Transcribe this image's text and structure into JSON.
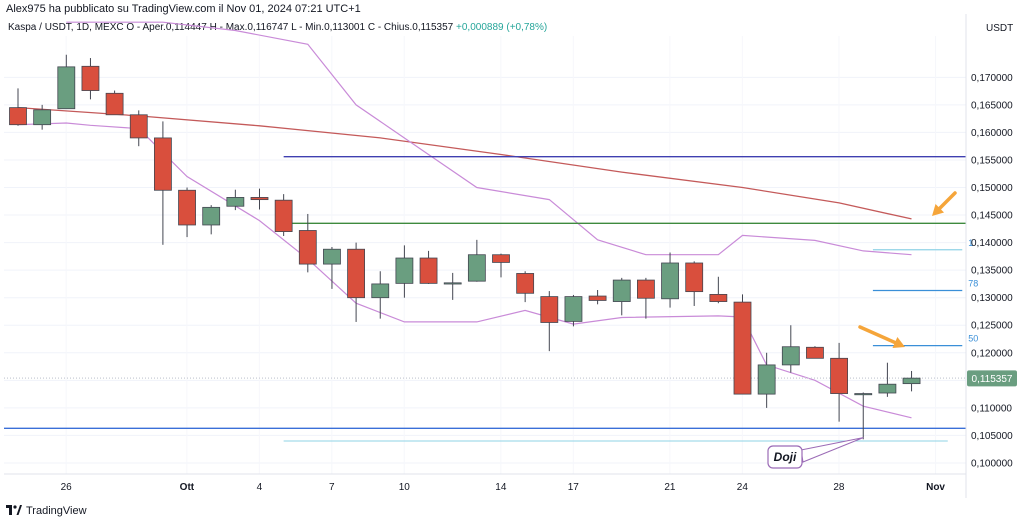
{
  "header": {
    "publish_text": "Alex975 ha pubblicato su TradingView.com il Nov 01, 2024 07:21 UTC+1"
  },
  "symbol_line": {
    "symbol": "Kaspa / USDT, 1D, MEXC",
    "ohlc": "O - Aper.0,114447  H - Max.0,116747  L - Min.0,113001  C - Chius.0,115357",
    "change": "+0,000889 (+0,78%)"
  },
  "footer": {
    "brand": "TradingView"
  },
  "colors": {
    "up": "#6a9e80",
    "down": "#d94f3d",
    "sma_long": "#c45a5a",
    "band": "#c98bd8",
    "blue_line": "#3a6fd8",
    "navy_line": "#3f3fb0",
    "green_line": "#3e8a3e",
    "light_line": "#8fd3e6",
    "fib_line": "#3a8fd8",
    "arrow": "#f5a53a"
  },
  "chart_data": {
    "type": "candlestick",
    "currency_label": "USDT",
    "ylim": [
      0.098,
      0.1775
    ],
    "y_ticks": [
      "0,170000",
      "0,165000",
      "0,160000",
      "0,155000",
      "0,150000",
      "0,145000",
      "0,140000",
      "0,135000",
      "0,130000",
      "0,125000",
      "0,120000",
      "0,115000",
      "0,110000",
      "0,105000",
      "0,100000"
    ],
    "x_ticks": [
      "26",
      "Ott",
      "4",
      "7",
      "10",
      "14",
      "17",
      "21",
      "24",
      "28",
      "Nov"
    ],
    "last_price_label": "0,115357",
    "candles": [
      {
        "o": 0.1645,
        "h": 0.168,
        "l": 0.1612,
        "c": 0.1614
      },
      {
        "o": 0.1614,
        "h": 0.165,
        "l": 0.1605,
        "c": 0.1641
      },
      {
        "o": 0.1643,
        "h": 0.1741,
        "l": 0.1643,
        "c": 0.1719
      },
      {
        "o": 0.172,
        "h": 0.1735,
        "l": 0.166,
        "c": 0.1676
      },
      {
        "o": 0.1671,
        "h": 0.1676,
        "l": 0.1633,
        "c": 0.1632
      },
      {
        "o": 0.1632,
        "h": 0.164,
        "l": 0.1575,
        "c": 0.159
      },
      {
        "o": 0.159,
        "h": 0.162,
        "l": 0.1396,
        "c": 0.1495
      },
      {
        "o": 0.1495,
        "h": 0.15,
        "l": 0.141,
        "c": 0.1432
      },
      {
        "o": 0.1432,
        "h": 0.1468,
        "l": 0.1415,
        "c": 0.1464
      },
      {
        "o": 0.1466,
        "h": 0.1496,
        "l": 0.1459,
        "c": 0.1482
      },
      {
        "o": 0.1482,
        "h": 0.1498,
        "l": 0.146,
        "c": 0.1478
      },
      {
        "o": 0.1477,
        "h": 0.1488,
        "l": 0.1412,
        "c": 0.142
      },
      {
        "o": 0.1422,
        "h": 0.1452,
        "l": 0.1346,
        "c": 0.1361
      },
      {
        "o": 0.1361,
        "h": 0.1392,
        "l": 0.1316,
        "c": 0.1388
      },
      {
        "o": 0.1388,
        "h": 0.14,
        "l": 0.1256,
        "c": 0.13
      },
      {
        "o": 0.13,
        "h": 0.1348,
        "l": 0.1262,
        "c": 0.1325
      },
      {
        "o": 0.1326,
        "h": 0.1395,
        "l": 0.13,
        "c": 0.1372
      },
      {
        "o": 0.1372,
        "h": 0.1385,
        "l": 0.1325,
        "c": 0.1326
      },
      {
        "o": 0.1326,
        "h": 0.1345,
        "l": 0.1296,
        "c": 0.1327
      },
      {
        "o": 0.133,
        "h": 0.1405,
        "l": 0.1329,
        "c": 0.1378
      },
      {
        "o": 0.1378,
        "h": 0.138,
        "l": 0.1337,
        "c": 0.1364
      },
      {
        "o": 0.1344,
        "h": 0.1348,
        "l": 0.1292,
        "c": 0.1308
      },
      {
        "o": 0.1302,
        "h": 0.1312,
        "l": 0.1203,
        "c": 0.1255
      },
      {
        "o": 0.1257,
        "h": 0.1305,
        "l": 0.1248,
        "c": 0.1302
      },
      {
        "o": 0.1303,
        "h": 0.1314,
        "l": 0.1288,
        "c": 0.1295
      },
      {
        "o": 0.1293,
        "h": 0.1336,
        "l": 0.1268,
        "c": 0.1332
      },
      {
        "o": 0.1332,
        "h": 0.1336,
        "l": 0.1262,
        "c": 0.1299
      },
      {
        "o": 0.1298,
        "h": 0.1382,
        "l": 0.1282,
        "c": 0.1363
      },
      {
        "o": 0.1363,
        "h": 0.1366,
        "l": 0.1285,
        "c": 0.1311
      },
      {
        "o": 0.1306,
        "h": 0.1338,
        "l": 0.129,
        "c": 0.1293
      },
      {
        "o": 0.1292,
        "h": 0.1306,
        "l": 0.1125,
        "c": 0.1125
      },
      {
        "o": 0.1125,
        "h": 0.12,
        "l": 0.11,
        "c": 0.1178
      },
      {
        "o": 0.1178,
        "h": 0.125,
        "l": 0.1164,
        "c": 0.1211
      },
      {
        "o": 0.121,
        "h": 0.1212,
        "l": 0.119,
        "c": 0.119
      },
      {
        "o": 0.119,
        "h": 0.1218,
        "l": 0.1075,
        "c": 0.1126
      },
      {
        "o": 0.1126,
        "h": 0.1128,
        "l": 0.1043,
        "c": 0.1126
      },
      {
        "o": 0.1127,
        "h": 0.1182,
        "l": 0.112,
        "c": 0.1143
      },
      {
        "o": 0.1144,
        "h": 0.1167,
        "l": 0.113,
        "c": 0.1154
      }
    ],
    "sma_long": [
      {
        "i": 0,
        "v": 0.1645
      },
      {
        "i": 5,
        "v": 0.163
      },
      {
        "i": 10,
        "v": 0.1612
      },
      {
        "i": 15,
        "v": 0.159
      },
      {
        "i": 20,
        "v": 0.156
      },
      {
        "i": 25,
        "v": 0.1528
      },
      {
        "i": 30,
        "v": 0.15
      },
      {
        "i": 34,
        "v": 0.1472
      },
      {
        "i": 37,
        "v": 0.1443
      }
    ],
    "upper_band": [
      {
        "i": 2,
        "v": 0.18
      },
      {
        "i": 6,
        "v": 0.18
      },
      {
        "i": 9,
        "v": 0.1785
      },
      {
        "i": 12,
        "v": 0.176
      },
      {
        "i": 14,
        "v": 0.165
      },
      {
        "i": 17,
        "v": 0.156
      },
      {
        "i": 19,
        "v": 0.15
      },
      {
        "i": 22,
        "v": 0.1478
      },
      {
        "i": 24,
        "v": 0.1405
      },
      {
        "i": 26,
        "v": 0.1378
      },
      {
        "i": 29,
        "v": 0.1378
      },
      {
        "i": 30,
        "v": 0.1413
      },
      {
        "i": 33,
        "v": 0.1404
      },
      {
        "i": 35,
        "v": 0.1385
      },
      {
        "i": 37,
        "v": 0.1378
      }
    ],
    "lower_band": [
      {
        "i": 0,
        "v": 0.1614
      },
      {
        "i": 2,
        "v": 0.1617
      },
      {
        "i": 3,
        "v": 0.1613
      },
      {
        "i": 5,
        "v": 0.1607
      },
      {
        "i": 7,
        "v": 0.152
      },
      {
        "i": 10,
        "v": 0.144
      },
      {
        "i": 12,
        "v": 0.137
      },
      {
        "i": 14,
        "v": 0.129
      },
      {
        "i": 16,
        "v": 0.1256
      },
      {
        "i": 19,
        "v": 0.1256
      },
      {
        "i": 21,
        "v": 0.1277
      },
      {
        "i": 23,
        "v": 0.1252
      },
      {
        "i": 25,
        "v": 0.1264
      },
      {
        "i": 29,
        "v": 0.1267
      },
      {
        "i": 30,
        "v": 0.1265
      },
      {
        "i": 31,
        "v": 0.1178
      },
      {
        "i": 33,
        "v": 0.115
      },
      {
        "i": 35,
        "v": 0.1103
      },
      {
        "i": 37,
        "v": 0.1082
      }
    ],
    "horizontal_levels": [
      {
        "name": "navy-level",
        "value": 0.1556,
        "from_index": 11,
        "to_index": 40
      },
      {
        "name": "green-level",
        "value": 0.1435,
        "from_index": 11,
        "to_index": 40
      },
      {
        "name": "blue-support",
        "value": 0.1063,
        "from_index": -1,
        "to_index": 40
      },
      {
        "name": "light-support",
        "value": 0.104,
        "from_index": 11,
        "to_index": 38.5
      },
      {
        "name": "price-line",
        "value": 0.1154,
        "from_index": -1,
        "to_index": 40
      }
    ],
    "fib_levels": [
      {
        "value": 0.1387,
        "label": "1"
      },
      {
        "value": 0.1313,
        "label": "78"
      },
      {
        "value": 0.1213,
        "label": "50"
      }
    ],
    "annotations": [
      {
        "type": "callout",
        "text": "Doji",
        "target_index": 35,
        "target_value": 0.1046
      }
    ]
  }
}
